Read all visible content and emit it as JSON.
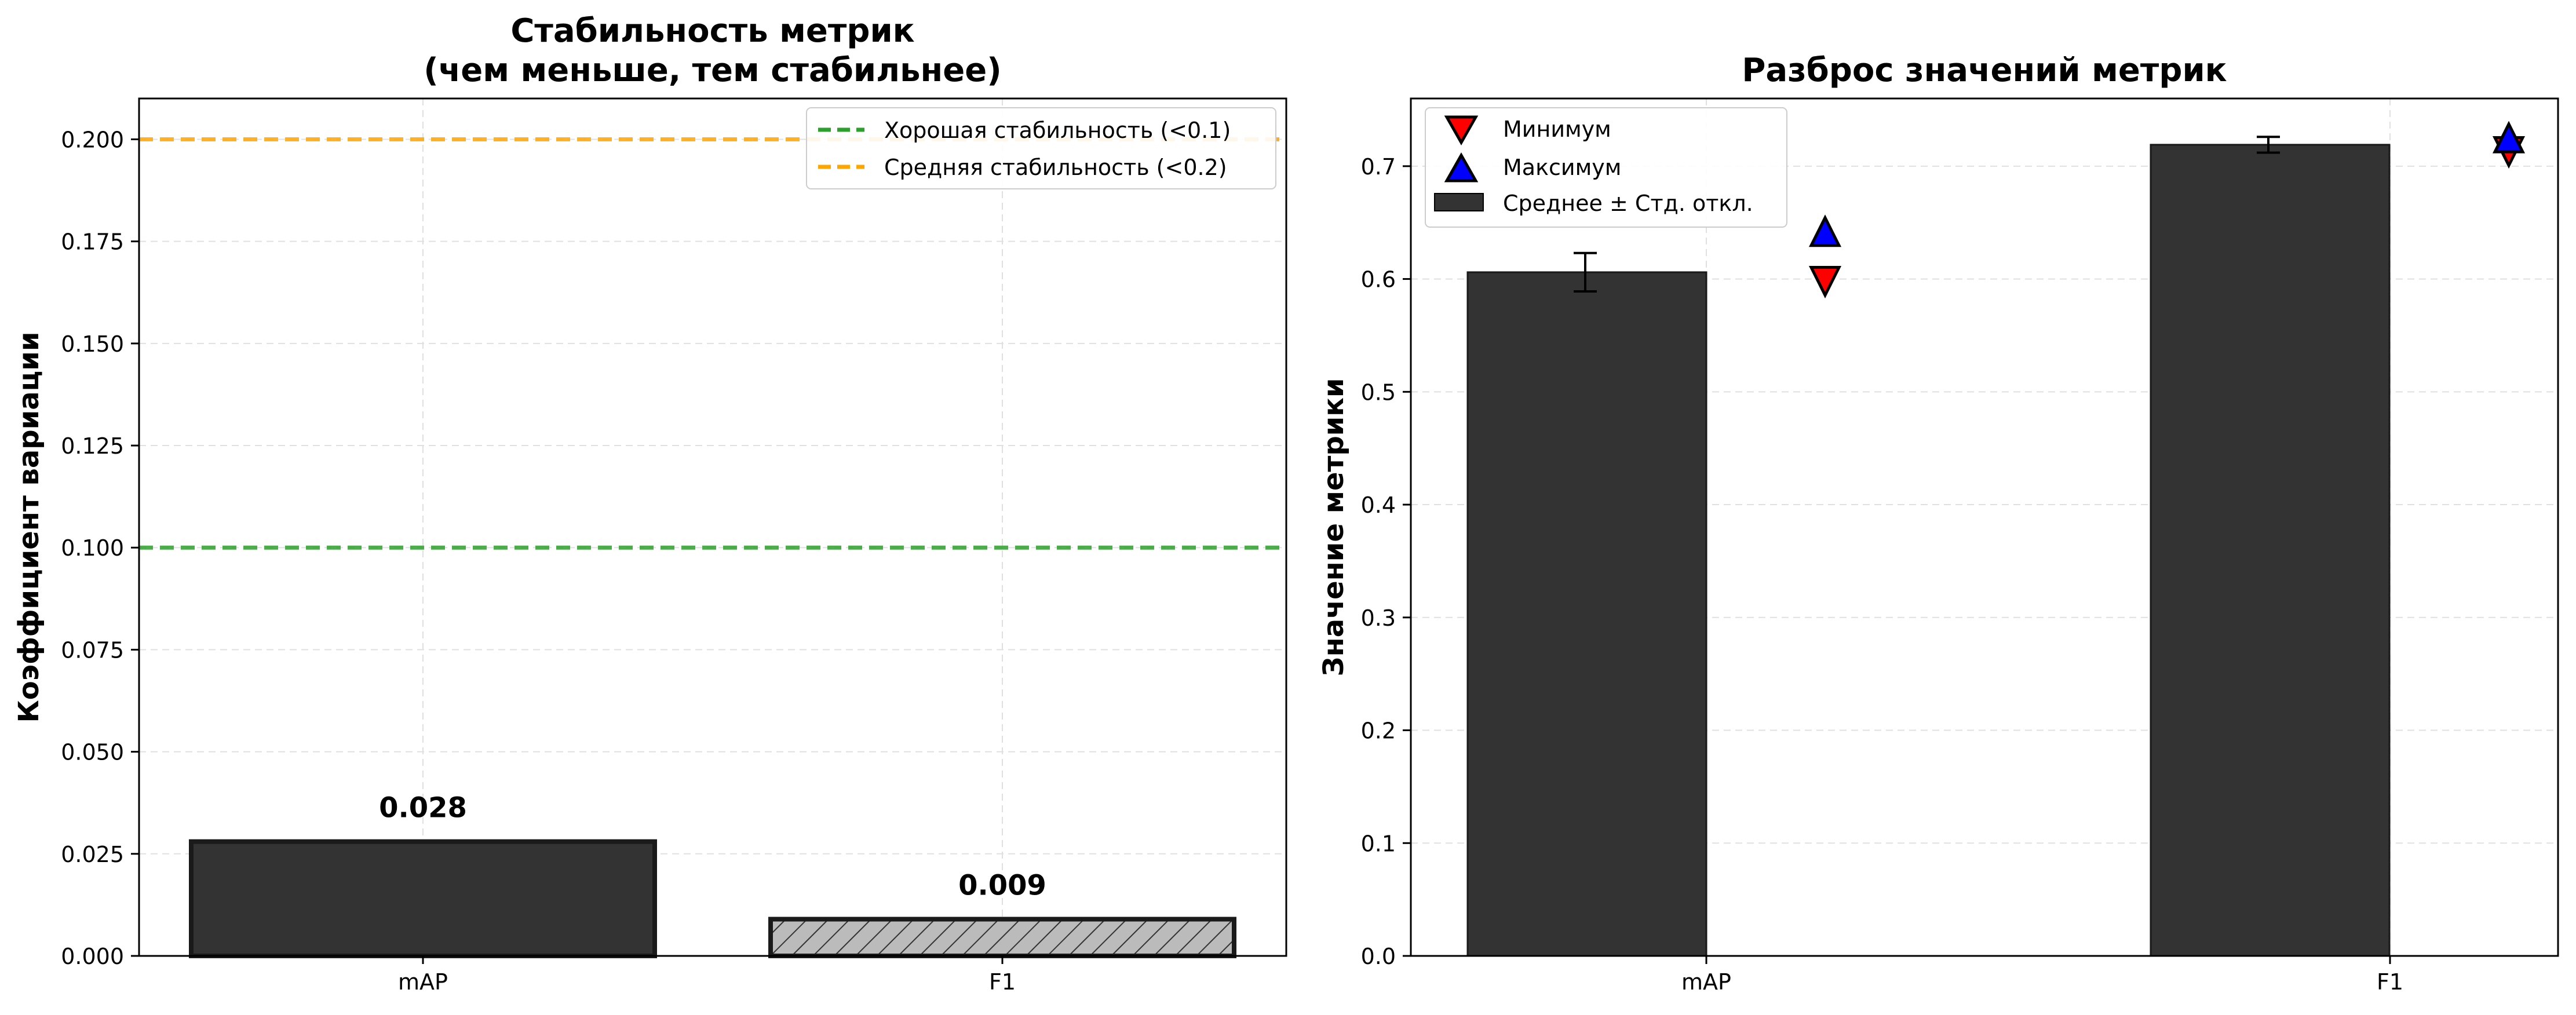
{
  "chart_data": [
    {
      "type": "bar",
      "title_lines": [
        "Стабильность метрик",
        "(чем меньше, тем стабильнее)"
      ],
      "xlabel": "",
      "ylabel": "Коэффициент вариации",
      "categories": [
        "mAP",
        "F1"
      ],
      "values": [
        0.028,
        0.009
      ],
      "value_labels": [
        "0.028",
        "0.009"
      ],
      "bar_colors": [
        "#333333",
        "#bbbbbb"
      ],
      "bar_hatch": [
        false,
        true
      ],
      "ylim": [
        0,
        0.21
      ],
      "yticks": [
        0.0,
        0.025,
        0.05,
        0.075,
        0.1,
        0.125,
        0.15,
        0.175,
        0.2
      ],
      "ytick_labels": [
        "0.000",
        "0.025",
        "0.050",
        "0.075",
        "0.100",
        "0.125",
        "0.150",
        "0.175",
        "0.200"
      ],
      "reference_lines": [
        {
          "y": 0.1,
          "label": "Хорошая стабильность (<0.1)",
          "color": "#2ca02c",
          "style": "dashed"
        },
        {
          "y": 0.2,
          "label": "Средняя стабильность (<0.2)",
          "color": "#ffa500",
          "style": "dashed"
        }
      ],
      "legend_position": "top-right",
      "grid": true
    },
    {
      "type": "bar",
      "title_lines": [
        "Разброс значений метрик"
      ],
      "xlabel": "",
      "ylabel": "Значение метрики",
      "categories": [
        "mAP",
        "F1"
      ],
      "series": [
        {
          "name": "Среднее ± Стд. откл.",
          "values": [
            0.606,
            0.719
          ],
          "error": [
            0.017,
            0.007
          ],
          "color": "#333333"
        },
        {
          "name": "Минимум",
          "values": [
            0.598,
            0.713
          ],
          "marker": "triangle-down",
          "color": "#ff0000"
        },
        {
          "name": "Максимум",
          "values": [
            0.642,
            0.725
          ],
          "marker": "triangle-up",
          "color": "#0000ff"
        }
      ],
      "ylim": [
        0,
        0.76
      ],
      "yticks": [
        0.0,
        0.1,
        0.2,
        0.3,
        0.4,
        0.5,
        0.6,
        0.7
      ],
      "ytick_labels": [
        "0.0",
        "0.1",
        "0.2",
        "0.3",
        "0.4",
        "0.5",
        "0.6",
        "0.7"
      ],
      "legend_order": [
        "Минимум",
        "Максимум",
        "Среднее ± Стд. откл."
      ],
      "legend_position": "top-left",
      "grid": true
    }
  ]
}
